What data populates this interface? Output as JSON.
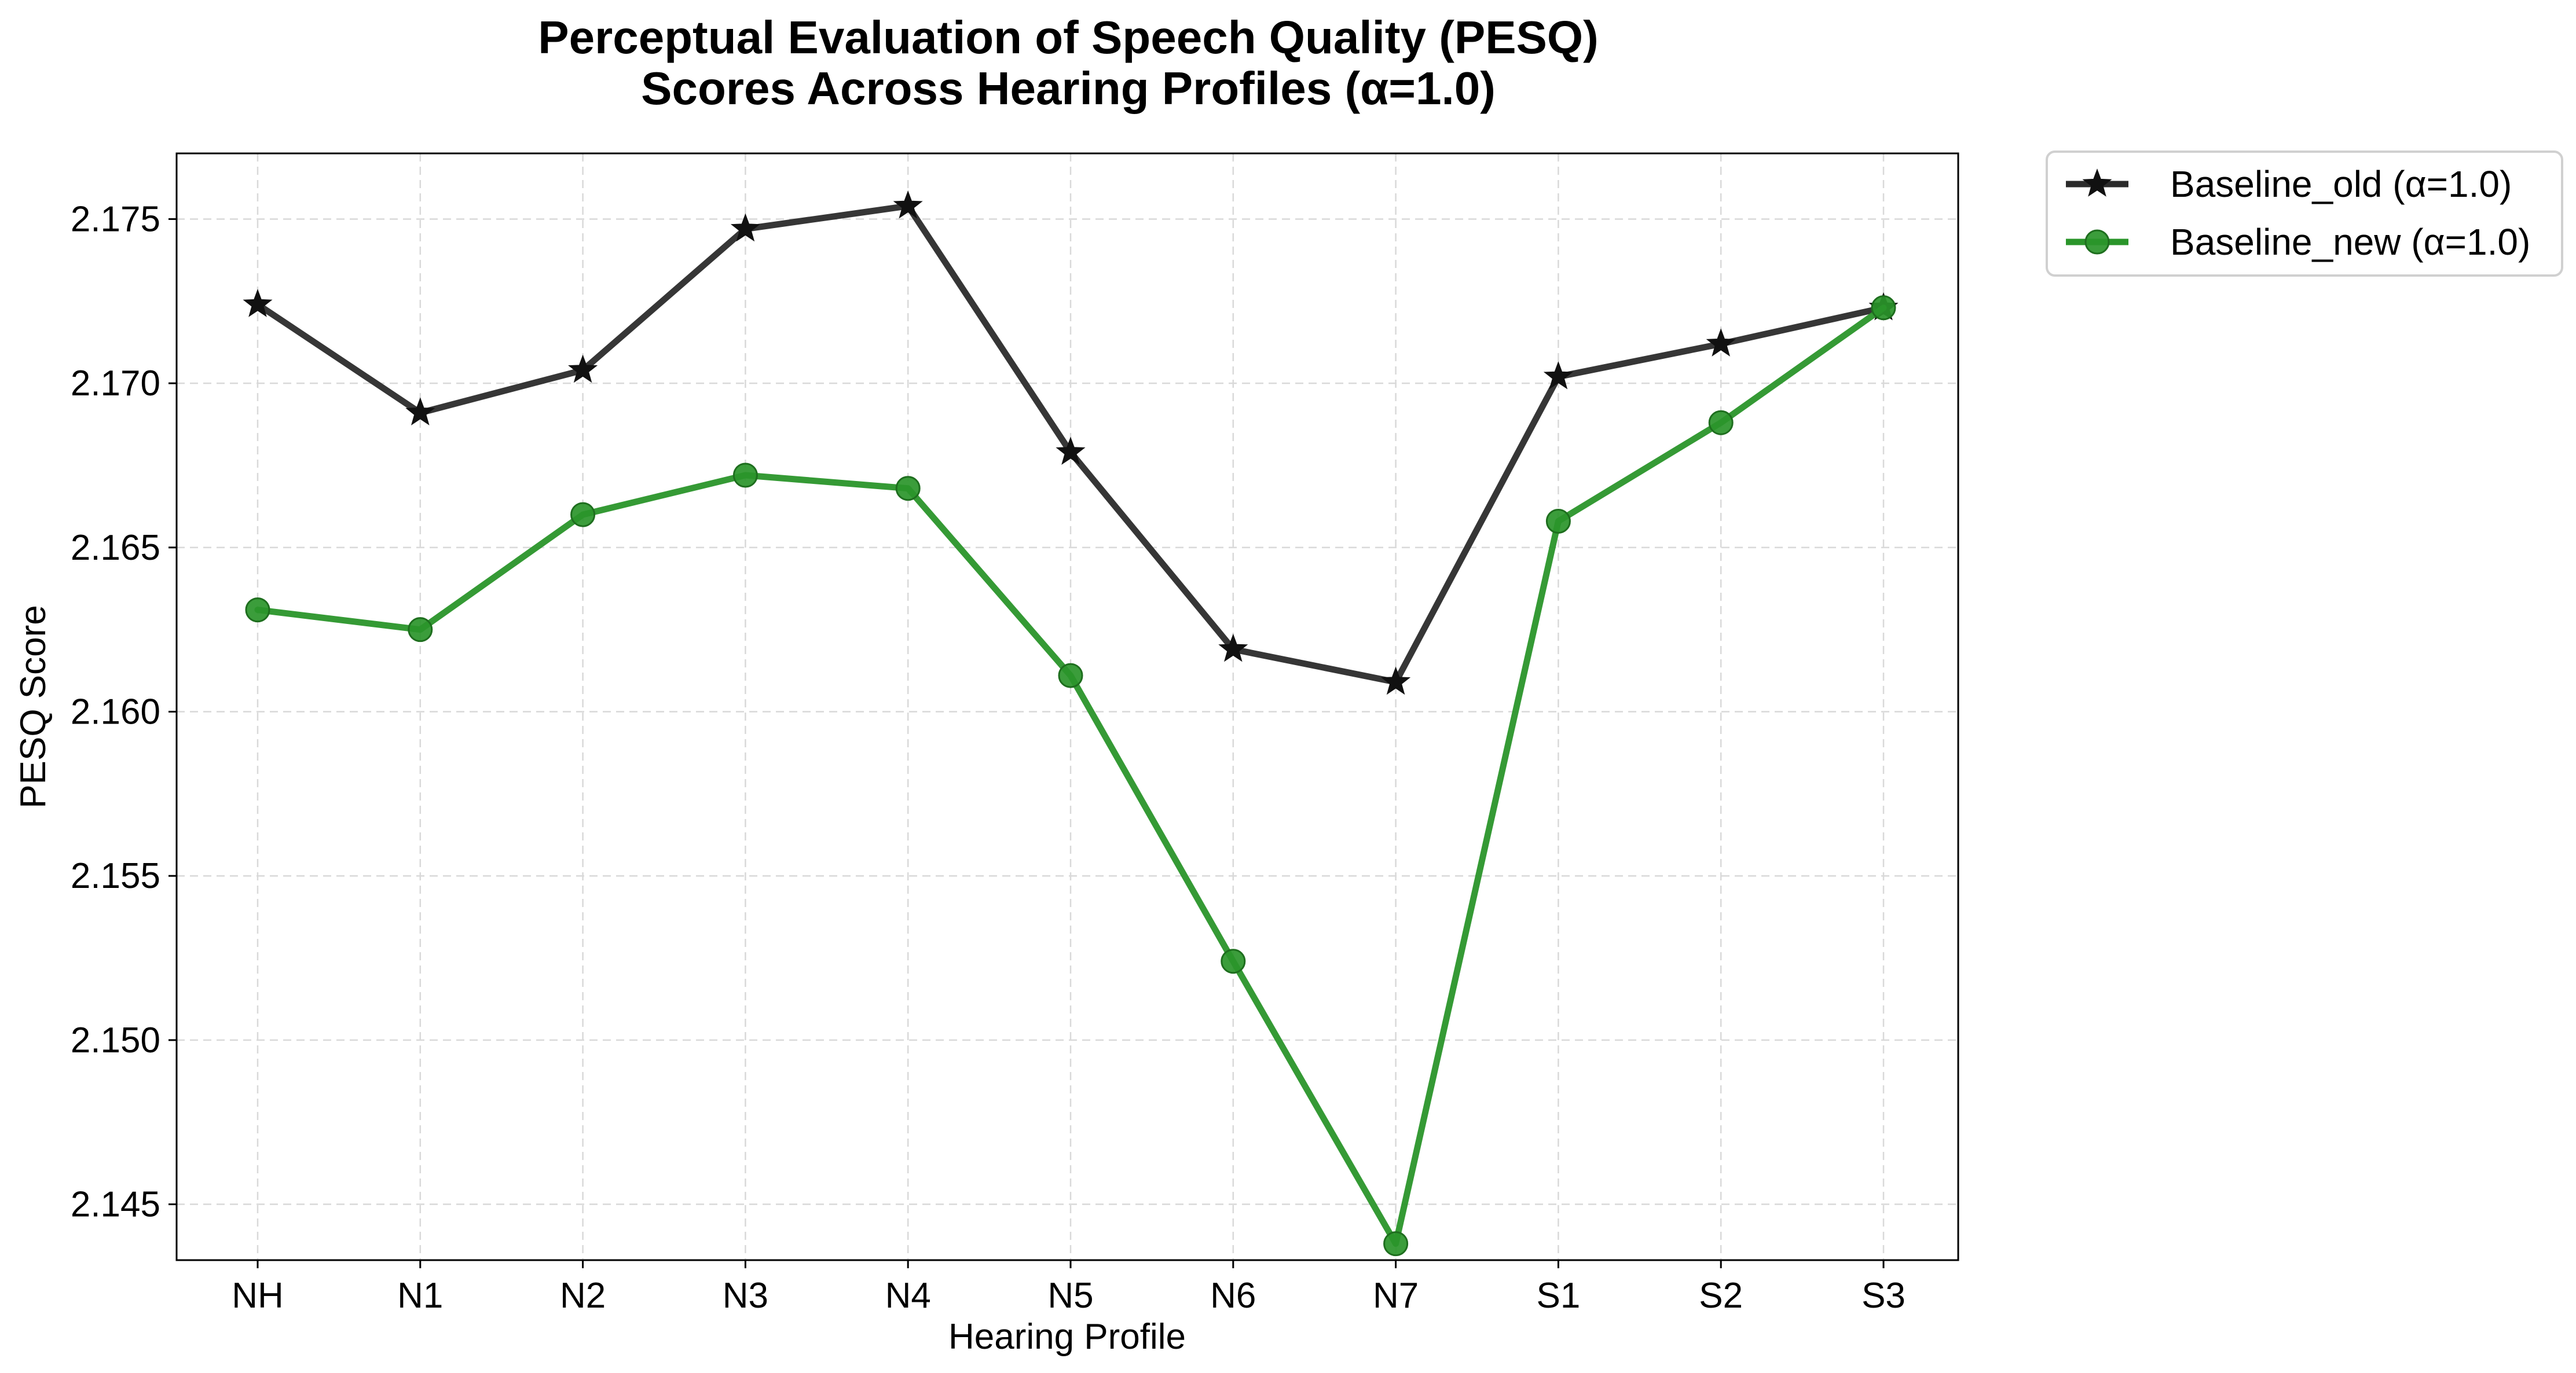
{
  "chart_data": {
    "type": "line",
    "title_lines": [
      "Perceptual Evaluation of Speech Quality (PESQ)",
      "Scores Across Hearing Profiles (α=1.0)"
    ],
    "xlabel": "Hearing Profile",
    "ylabel": "PESQ Score",
    "categories": [
      "NH",
      "N1",
      "N2",
      "N3",
      "N4",
      "N5",
      "N6",
      "N7",
      "S1",
      "S2",
      "S3"
    ],
    "ylim": [
      2.1433,
      2.177
    ],
    "yticks": [
      2.145,
      2.15,
      2.155,
      2.16,
      2.165,
      2.17,
      2.175
    ],
    "ytick_labels": [
      "2.145",
      "2.150",
      "2.155",
      "2.160",
      "2.165",
      "2.170",
      "2.175"
    ],
    "grid": true,
    "legend_position": "outside-top-right",
    "series": [
      {
        "name": "Baseline_old (α=1.0)",
        "color": "#2b2b2b",
        "marker": "star",
        "values": [
          2.1724,
          2.1691,
          2.1704,
          2.1747,
          2.1754,
          2.1679,
          2.1619,
          2.1609,
          2.1702,
          2.1712,
          2.1723
        ]
      },
      {
        "name": "Baseline_new (α=1.0)",
        "color": "#2a952a",
        "marker": "circle",
        "values": [
          2.1631,
          2.1625,
          2.166,
          2.1672,
          2.1668,
          2.1611,
          2.1524,
          2.1438,
          2.1658,
          2.1688,
          2.1723
        ]
      }
    ]
  }
}
